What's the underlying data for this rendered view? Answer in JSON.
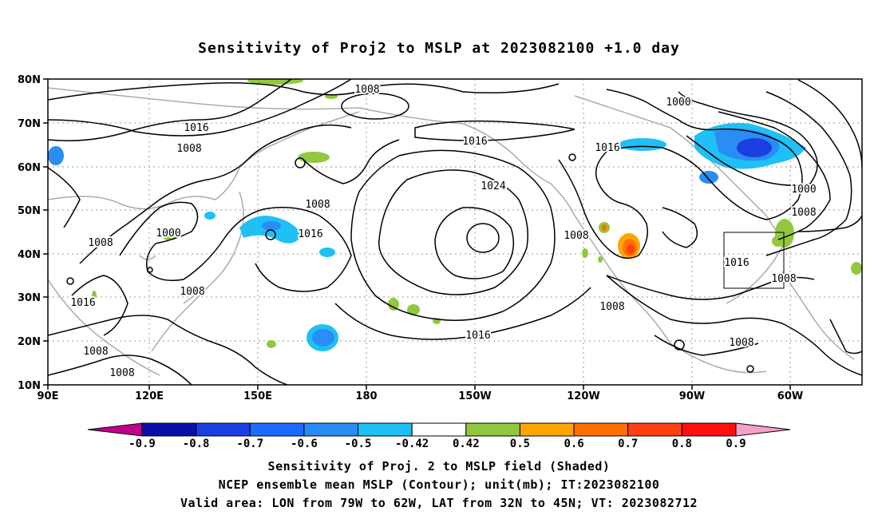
{
  "title": "Sensitivity of Proj2 to MSLP at 2023082100 +1.0 day",
  "lat_labels": [
    "80N",
    "70N",
    "60N",
    "50N",
    "40N",
    "30N",
    "20N",
    "10N"
  ],
  "lon_labels": [
    "90E",
    "120E",
    "150E",
    "180",
    "150W",
    "120W",
    "90W",
    "60W"
  ],
  "contour_labels": [
    "1008",
    "1016",
    "1008",
    "1000",
    "1008",
    "1008",
    "1016",
    "1008",
    "1008",
    "1008",
    "1008",
    "1016",
    "1024",
    "1016",
    "1008",
    "1016",
    "1000",
    "1000",
    "1008",
    "1016",
    "1016",
    "1008",
    "1008"
  ],
  "colorbar": {
    "labels": [
      "-0.9",
      "-0.8",
      "-0.7",
      "-0.6",
      "-0.5",
      "-0.42",
      "0.42",
      "0.5",
      "0.6",
      "0.7",
      "0.8",
      "0.9"
    ],
    "colors": [
      "#c0008a",
      "#0a0fa8",
      "#1a3fe0",
      "#1f6bff",
      "#2a8cf5",
      "#1ec0f5",
      "#ffffff",
      "#92c83e",
      "#ffa500",
      "#ff7000",
      "#ff4010",
      "#ff1010",
      "#f5a0c8"
    ]
  },
  "footer": {
    "line1": "Sensitivity of Proj. 2 to MSLP field (Shaded)",
    "line2": "NCEP ensemble mean MSLP (Contour); unit(mb); IT:2023082100",
    "line3": "Valid area: LON from 79W to 62W, LAT from 32N to 45N; VT: 2023082712"
  }
}
